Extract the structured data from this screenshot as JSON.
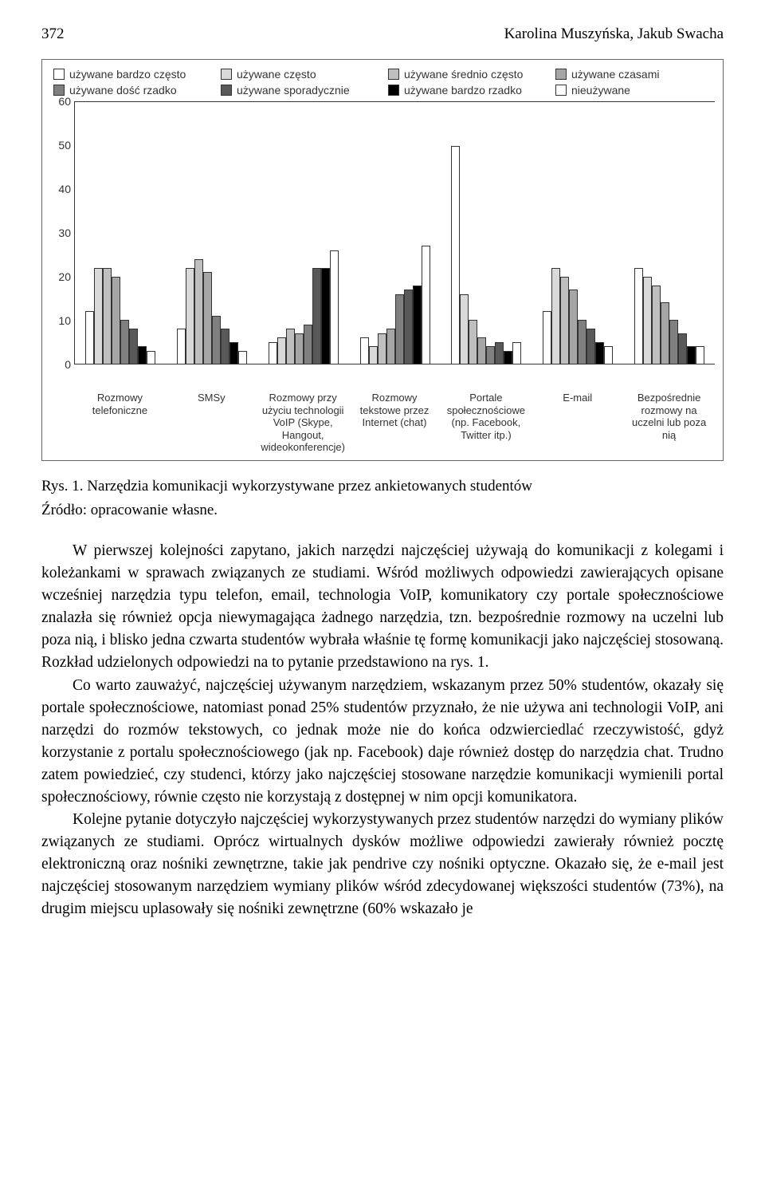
{
  "header": {
    "page_number": "372",
    "authors": "Karolina Muszyńska, Jakub Swacha"
  },
  "chart": {
    "type": "grouped-bar",
    "legend": [
      {
        "label": "używane bardzo często",
        "color": "#ffffff"
      },
      {
        "label": "używane często",
        "color": "#d9d9d9"
      },
      {
        "label": "używane średnio często",
        "color": "#bfbfbf"
      },
      {
        "label": "używane czasami",
        "color": "#a6a6a6"
      },
      {
        "label": "używane dość rzadko",
        "color": "#808080"
      },
      {
        "label": "używane sporadycznie",
        "color": "#595959"
      },
      {
        "label": "używane bardzo rzadko",
        "color": "#000000"
      },
      {
        "label": "nieużywane",
        "color": "#ffffff"
      }
    ],
    "ylim": [
      0,
      60
    ],
    "ytick_step": 10,
    "axis_fontsize": 14,
    "bar_border_color": "#333333",
    "background_color": "#ffffff",
    "categories": [
      "Rozmowy telefoniczne",
      "SMSy",
      "Rozmowy przy użyciu technologii VoIP (Skype, Hangout, wideokonferencje)",
      "Rozmowy tekstowe przez Internet (chat)",
      "Portale społecznościowe (np. Facebook, Twitter itp.)",
      "E-mail",
      "Bezpośrednie rozmowy na uczelni lub poza nią"
    ],
    "series_by_category": [
      [
        12,
        22,
        22,
        20,
        10,
        8,
        4,
        3
      ],
      [
        8,
        22,
        24,
        21,
        11,
        8,
        5,
        3
      ],
      [
        5,
        6,
        8,
        7,
        9,
        22,
        22,
        26
      ],
      [
        6,
        4,
        7,
        8,
        16,
        17,
        18,
        27
      ],
      [
        50,
        16,
        10,
        6,
        4,
        5,
        3,
        5
      ],
      [
        12,
        22,
        20,
        17,
        10,
        8,
        5,
        4
      ],
      [
        22,
        20,
        18,
        14,
        10,
        7,
        4,
        4
      ]
    ]
  },
  "caption": "Rys. 1. Narzędzia komunikacji wykorzystywane przez ankietowanych studentów",
  "source": "Źródło: opracowanie własne.",
  "paragraphs": [
    "W pierwszej kolejności zapytano, jakich narzędzi najczęściej używają do komunikacji z kolegami i koleżankami w sprawach związanych ze studiami. Wśród możliwych odpowiedzi zawierających opisane wcześniej narzędzia typu telefon, email, technologia VoIP, komunikatory czy portale społecznościowe znalazła się również opcja niewymagająca żadnego narzędzia, tzn. bezpośrednie rozmowy na uczelni lub poza nią, i blisko jedna czwarta studentów wybrała właśnie tę formę komunikacji jako najczęściej stosowaną. Rozkład udzielonych odpowiedzi na to pytanie przedstawiono na rys. 1.",
    "Co warto zauważyć, najczęściej używanym narzędziem, wskazanym przez 50% studentów, okazały się portale społecznościowe, natomiast ponad 25% studentów przyznało, że nie używa ani technologii VoIP, ani narzędzi do rozmów tekstowych, co jednak może nie do końca odzwierciedlać rzeczywistość, gdyż korzystanie z portalu społecznościowego (jak np. Facebook) daje również dostęp do narzędzia chat. Trudno zatem powiedzieć, czy studenci, którzy jako najczęściej stosowane narzędzie komunikacji wymienili portal społecznościowy, równie często nie korzystają z dostępnej w nim opcji komunikatora.",
    "Kolejne pytanie dotyczyło najczęściej wykorzystywanych przez studentów narzędzi do wymiany plików związanych ze studiami. Oprócz wirtualnych dysków możliwe odpowiedzi zawierały również pocztę elektroniczną oraz nośniki zewnętrzne, takie jak pendrive czy nośniki optyczne. Okazało się, że e-mail jest najczęściej stosowanym narzędziem wymiany plików wśród zdecydowanej większości studentów (73%), na drugim miejscu uplasowały się nośniki zewnętrzne (60% wskazało je"
  ]
}
